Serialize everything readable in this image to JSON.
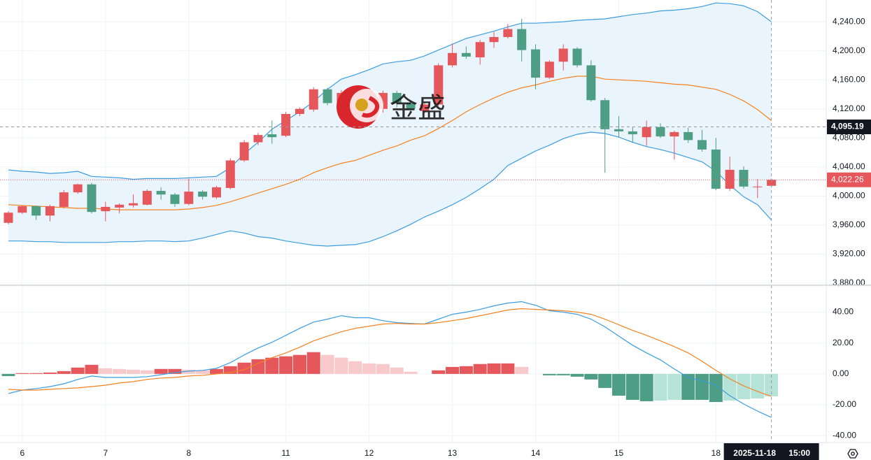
{
  "chart_data": [
    {
      "type": "candlestick",
      "categories": [
        null,
        "6",
        null,
        null,
        null,
        null,
        null,
        "7",
        null,
        null,
        null,
        null,
        null,
        "8",
        null,
        null,
        null,
        null,
        null,
        null,
        "11",
        null,
        null,
        null,
        null,
        null,
        "12",
        null,
        null,
        null,
        null,
        null,
        "13",
        null,
        null,
        null,
        null,
        null,
        "14",
        null,
        null,
        null,
        null,
        null,
        "15",
        null,
        null,
        null,
        null,
        null,
        null,
        "18",
        null,
        null,
        null,
        null
      ],
      "open": [
        3963,
        3977,
        3986,
        3973,
        3985,
        4005,
        4016,
        3979,
        3984,
        3987,
        3988,
        4007,
        4002,
        3989,
        4006,
        3998,
        4011,
        4049,
        4074,
        4085,
        4083,
        4113,
        4119,
        4147,
        4128,
        4142,
        4112,
        4120,
        4142,
        4128,
        4117,
        4126,
        4180,
        4197,
        4191,
        4212,
        4219,
        4230,
        4202,
        4163,
        4185,
        4203,
        4180,
        4132,
        4092,
        4089,
        4081,
        4095,
        4082,
        4088,
        4077,
        4064,
        4010,
        4036,
        4012,
        4014
      ],
      "high": [
        3979,
        3987,
        3987,
        3988,
        4008,
        4017,
        4018,
        3992,
        3990,
        4002,
        4009,
        4012,
        4004,
        4024,
        4008,
        4014,
        4052,
        4077,
        4087,
        4104,
        4116,
        4122,
        4150,
        4149,
        4146,
        4150,
        4140,
        4145,
        4145,
        4132,
        4130,
        4183,
        4210,
        4206,
        4215,
        4226,
        4237,
        4244,
        4209,
        4187,
        4209,
        4205,
        4187,
        4135,
        4110,
        4095,
        4104,
        4100,
        4090,
        4094,
        4091,
        4080,
        4054,
        4041,
        4023,
        4024
      ],
      "low": [
        3961,
        3975,
        3967,
        3965,
        3983,
        4003,
        3976,
        3965,
        3976,
        3984,
        3987,
        3995,
        3985,
        3987,
        3995,
        3996,
        4009,
        4047,
        4070,
        4072,
        4081,
        4110,
        4116,
        4125,
        4120,
        4125,
        4108,
        4115,
        4122,
        4115,
        4114,
        4123,
        4177,
        4189,
        4181,
        4204,
        4217,
        4185,
        4147,
        4161,
        4173,
        4177,
        4130,
        4032,
        4081,
        4074,
        4069,
        4080,
        4050,
        4073,
        4061,
        4008,
        4007,
        4010,
        3997,
        4012
      ],
      "close": [
        3977,
        3986,
        3973,
        3986,
        4005,
        4016,
        3978,
        3985,
        3988,
        3990,
        4007,
        4002,
        3989,
        4006,
        3999,
        4012,
        4049,
        4074,
        4084,
        4081,
        4113,
        4120,
        4147,
        4128,
        4142,
        4132,
        4130,
        4142,
        4128,
        4120,
        4126,
        4180,
        4197,
        4192,
        4212,
        4219,
        4230,
        4201,
        4163,
        4185,
        4203,
        4180,
        4132,
        4092,
        4089,
        4085,
        4095,
        4082,
        4088,
        4077,
        4064,
        4010,
        4036,
        4013,
        4013,
        4022.26
      ],
      "up_color": "#e5575b",
      "down_color": "#4e9e86",
      "band_fill": "#eaf4fc",
      "series": [
        {
          "color": "#3b9de0",
          "values": [
            4036,
            4034,
            4033,
            4031,
            4032,
            4034,
            4027,
            4026,
            4025,
            4023,
            4024,
            4024,
            4024,
            4025,
            4026,
            4027,
            4039,
            4058,
            4074,
            4092,
            4104,
            4116,
            4130,
            4147,
            4161,
            4167,
            4174,
            4182,
            4185,
            4187,
            4193,
            4201,
            4209,
            4217,
            4222,
            4227,
            4233,
            4238,
            4238,
            4239,
            4240,
            4242,
            4243,
            4244,
            4247,
            4250,
            4252,
            4255,
            4256,
            4258,
            4261,
            4266,
            4265,
            4262,
            4254,
            4240
          ]
        },
        {
          "color": "#f5821f",
          "values": [
            3988,
            3987,
            3986,
            3985,
            3984,
            3983,
            3983,
            3982,
            3981,
            3981,
            3981,
            3981,
            3981,
            3982,
            3984,
            3987,
            3992,
            3998,
            4004,
            4010,
            4016,
            4023,
            4032,
            4039,
            4045,
            4049,
            4056,
            4063,
            4069,
            4077,
            4083,
            4093,
            4104,
            4116,
            4126,
            4135,
            4143,
            4149,
            4153,
            4158,
            4162,
            4165,
            4165,
            4161,
            4160,
            4159,
            4158,
            4156,
            4154,
            4153,
            4150,
            4147,
            4140,
            4131,
            4119,
            4104
          ]
        },
        {
          "color": "#3b9de0",
          "values": [
            3938,
            3938,
            3937,
            3937,
            3936,
            3936,
            3936,
            3936,
            3937,
            3937,
            3938,
            3938,
            3937,
            3938,
            3942,
            3947,
            3952,
            3949,
            3944,
            3942,
            3938,
            3935,
            3932,
            3931,
            3932,
            3933,
            3937,
            3944,
            3952,
            3961,
            3971,
            3979,
            3988,
            3998,
            4010,
            4023,
            4042,
            4052,
            4062,
            4070,
            4079,
            4085,
            4088,
            4086,
            4081,
            4074,
            4068,
            4064,
            4059,
            4053,
            4047,
            4034,
            4015,
            3999,
            3988,
            3967
          ]
        }
      ],
      "ylim": [
        3878,
        4270
      ],
      "yticks": [
        {
          "value": 3880,
          "label": "3,880.00"
        },
        {
          "value": 3920,
          "label": "3,920.00"
        },
        {
          "value": 3960,
          "label": "3,960.00"
        },
        {
          "value": 4000,
          "label": "4,000.00"
        },
        {
          "value": 4040,
          "label": "4,040.00"
        },
        {
          "value": 4080,
          "label": "4,080.00"
        },
        {
          "value": 4120,
          "label": "4,120.00"
        },
        {
          "value": 4160,
          "label": "4,160.00"
        },
        {
          "value": 4200,
          "label": "4,200.00"
        },
        {
          "value": 4240,
          "label": "4,240.00"
        }
      ],
      "grid": true,
      "crosshair": {
        "price": {
          "value": 4095.19,
          "label": "4,095.19"
        },
        "date": "2025-11-18",
        "time": "15:00"
      },
      "last_price": {
        "value": 4022.26,
        "label": "4,022.26"
      },
      "watermark": "金盛"
    },
    {
      "type": "macd",
      "series": [
        {
          "color": "#3b9de0",
          "values": [
            -12.7,
            -10.5,
            -9.5,
            -8.2,
            -6.4,
            -3.6,
            -1.4,
            -2.3,
            -2.3,
            -2.3,
            -1.8,
            -0.5,
            0.9,
            1.8,
            2.3,
            3.6,
            7.3,
            12.3,
            16.8,
            20.5,
            25,
            29.5,
            33.6,
            35.5,
            37.7,
            36.4,
            36.4,
            34.5,
            33.2,
            32.7,
            32.3,
            35.5,
            38.6,
            40,
            41.8,
            44.1,
            45.9,
            46.8,
            44.5,
            40.9,
            40,
            38.6,
            35.5,
            30.5,
            24.5,
            18.6,
            13.6,
            9.1,
            3.2,
            -2.3,
            -4.5,
            -7.3,
            -14.1,
            -19.5,
            -24.1,
            -28.2
          ]
        },
        {
          "color": "#f5821f",
          "values": [
            -10,
            -10.5,
            -10.5,
            -10,
            -9.5,
            -9.1,
            -8.2,
            -7.3,
            -5.9,
            -5,
            -3.6,
            -2.7,
            -2.3,
            -1.4,
            -0.9,
            0,
            0.9,
            2.7,
            6.8,
            10.5,
            13.6,
            17.3,
            21.4,
            24.5,
            27.3,
            29.5,
            30.9,
            32.3,
            32.7,
            32.3,
            32.3,
            33.2,
            34.5,
            35.9,
            37.7,
            39.5,
            41.4,
            42.3,
            41.8,
            41.4,
            40.9,
            40,
            38.6,
            35.5,
            31.8,
            28.2,
            25,
            21.4,
            17.7,
            13.6,
            8.2,
            2.3,
            -3.2,
            -7.7,
            -11.4,
            -14.5
          ]
        }
      ],
      "histogram": [
        -1.4,
        0.5,
        0.5,
        0.9,
        1.8,
        4.1,
        5.9,
        3.6,
        3.2,
        2.7,
        2.3,
        3.2,
        3.2,
        2.7,
        2.3,
        3.2,
        5,
        7.3,
        9.5,
        10.5,
        11.4,
        12.3,
        14.1,
        12.3,
        10.5,
        8.2,
        6.8,
        6.4,
        4.1,
        1.4,
        0,
        2.3,
        4.5,
        5,
        6.4,
        6.8,
        6.8,
        4.5,
        0,
        -0.9,
        -0.9,
        -1.8,
        -3.6,
        -9.1,
        -14.1,
        -16.8,
        -17.7,
        -17.3,
        -16.8,
        -16.8,
        -16.8,
        -18.2,
        -17.3,
        -16.4,
        -15.9,
        -14.5
      ],
      "histogram_colors": {
        "up_grow": "#e5575b",
        "up_fall": "#f7c9ca",
        "down_grow": "#4e9e86",
        "down_fall": "#b5e3d8"
      },
      "ylim": [
        -44,
        57
      ],
      "yticks": [
        {
          "value": -40,
          "label": "-40.00"
        },
        {
          "value": -20,
          "label": "-20.00"
        },
        {
          "value": 0,
          "label": "0.00"
        },
        {
          "value": 20,
          "label": "20.00"
        },
        {
          "value": 40,
          "label": "40.00"
        }
      ],
      "grid": true
    }
  ]
}
